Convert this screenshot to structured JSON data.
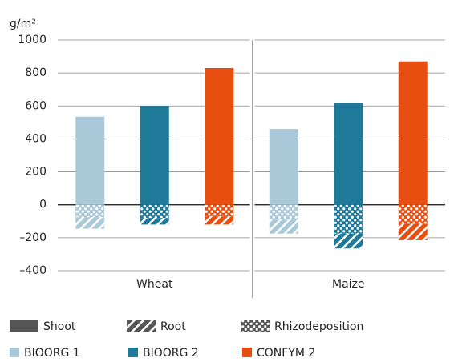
{
  "chart_data": {
    "type": "bar",
    "y_label": "g/m²",
    "categories": [
      "Wheat",
      "Maize"
    ],
    "components": [
      {
        "name": "Shoot",
        "pattern": "solid"
      },
      {
        "name": "Root",
        "pattern": "hatch"
      },
      {
        "name": "Rhizodeposition",
        "pattern": "dots"
      }
    ],
    "series": [
      {
        "name": "BIOORG 1",
        "color": "#a9c9d9",
        "values": [
          [
            535,
            -70,
            -75
          ],
          [
            460,
            -85,
            -90
          ]
        ]
      },
      {
        "name": "BIOORG 2",
        "color": "#1f7a99",
        "values": [
          [
            600,
            -40,
            -80
          ],
          [
            620,
            -90,
            -175
          ]
        ]
      },
      {
        "name": "CONFYM 2",
        "color": "#e84e0f",
        "values": [
          [
            830,
            -50,
            -70
          ],
          [
            870,
            -100,
            -115
          ]
        ]
      }
    ],
    "ylim": [
      -400,
      1000
    ],
    "yticks": [
      {
        "value": -400,
        "label": "–400"
      },
      {
        "value": -200,
        "label": "–200"
      },
      0,
      200,
      400,
      600,
      800,
      1000
    ],
    "grid": true,
    "legend_swatch_color": "#555555"
  }
}
